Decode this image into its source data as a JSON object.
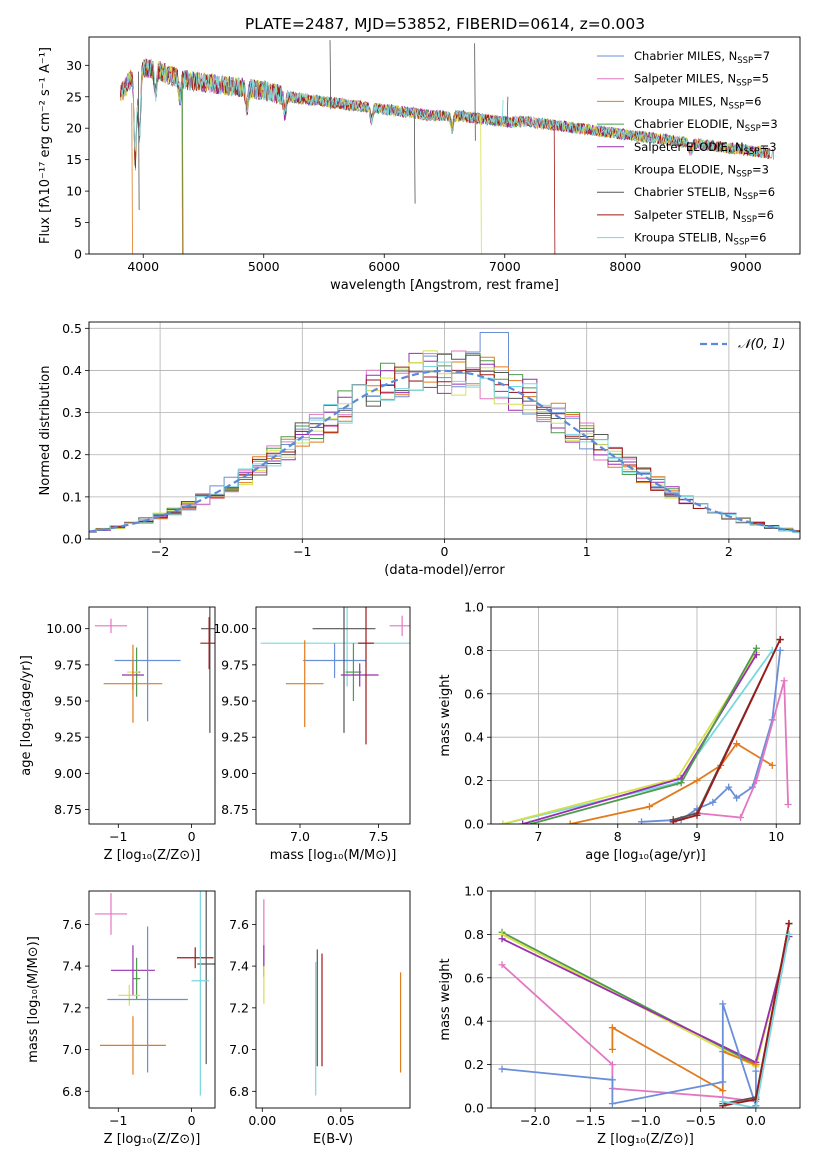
{
  "colors": {
    "blue": "#6a8fd8",
    "pink": "#e377c2",
    "orange": "#e07b1f",
    "green": "#4e9a4e",
    "purple": "#9a2fb0",
    "yellow": "#d6e04a",
    "gray": "#555555",
    "red": "#a01818",
    "cyan": "#7ad7de"
  },
  "chart_data": [
    {
      "type": "line",
      "title": "PLATE=2487, MJD=53852, FIBERID=0614, z=0.003",
      "xlabel": "wavelength [Angstrom, rest frame]",
      "ylabel": "Flux [fλ10⁻¹⁷ erg cm⁻² s⁻¹ A⁻¹]",
      "xlim": [
        3550,
        9450
      ],
      "ylim": [
        0,
        34.5
      ],
      "xticks": [
        4000,
        5000,
        6000,
        7000,
        8000,
        9000
      ],
      "yticks": [
        0,
        5,
        10,
        15,
        20,
        25,
        30
      ],
      "legend_position": "top-right",
      "series": [
        {
          "name": "Chabrier MILES, N",
          "sub": "SSP",
          "suffix": "=7",
          "color": "blue"
        },
        {
          "name": "Salpeter MILES, N",
          "sub": "SSP",
          "suffix": "=5",
          "color": "pink"
        },
        {
          "name": "Kroupa MILES, N",
          "sub": "SSP",
          "suffix": "=6",
          "color": "orange"
        },
        {
          "name": "Chabrier ELODIE, N",
          "sub": "SSP",
          "suffix": "=3",
          "color": "green"
        },
        {
          "name": "Salpeter ELODIE, N",
          "sub": "SSP",
          "suffix": "=3",
          "color": "purple"
        },
        {
          "name": "Kroupa ELODIE, N",
          "sub": "SSP",
          "suffix": "=3",
          "color": "yellow"
        },
        {
          "name": "Chabrier STELIB, N",
          "sub": "SSP",
          "suffix": "=6",
          "color": "gray"
        },
        {
          "name": "Salpeter STELIB, N",
          "sub": "SSP",
          "suffix": "=6",
          "color": "red"
        },
        {
          "name": "Kroupa STELIB, N",
          "sub": "SSP",
          "suffix": "=6",
          "color": "cyan"
        }
      ],
      "continuum": {
        "x": [
          3800,
          3900,
          4000,
          4100,
          4200,
          4400,
          4600,
          4800,
          5000,
          5200,
          5400,
          5600,
          5800,
          6000,
          6200,
          6400,
          6600,
          6800,
          7000,
          7200,
          7400,
          7600,
          7800,
          8000,
          8200,
          8400,
          8600,
          8800,
          9000,
          9200
        ],
        "y": [
          25,
          28,
          29.5,
          29.5,
          28.5,
          27.5,
          27,
          26.5,
          26,
          25,
          24.5,
          24,
          23.5,
          23,
          22.5,
          22,
          22,
          21.5,
          21,
          21,
          20.5,
          20,
          19.5,
          19,
          18.5,
          18,
          17.5,
          17,
          16.5,
          16
        ]
      }
    },
    {
      "type": "line",
      "xlabel": "(data-model)/error",
      "ylabel": "Normed distribution",
      "xlim": [
        -2.5,
        2.5
      ],
      "ylim": [
        0,
        0.515
      ],
      "xticks": [
        -2,
        -1,
        0,
        1,
        2
      ],
      "yticks": [
        0.0,
        0.1,
        0.2,
        0.3,
        0.4,
        0.5
      ],
      "grid": true,
      "legend_position": "top-right",
      "gaussian_label": "𝒩(0, 1)",
      "bin_width": 0.1
    },
    {
      "type": "scatter",
      "xlabel": "Z [log₁₀(Z/Z⊙)]",
      "ylabel": "age  [log₁₀(age/yr)]",
      "xlim": [
        -1.4,
        0.32
      ],
      "ylim": [
        8.65,
        10.15
      ],
      "xticks": [
        -1,
        0
      ],
      "yticks": [
        8.75,
        9.0,
        9.25,
        9.5,
        9.75,
        10.0
      ],
      "errorbars": [
        {
          "color": "pink",
          "x": -1.1,
          "y": 10.02,
          "xerr": 0.22,
          "yerr": 0.05
        },
        {
          "color": "blue",
          "x": -0.6,
          "y": 9.78,
          "xerr": 0.45,
          "yerr": 0.42
        },
        {
          "color": "green",
          "x": -0.75,
          "y": 9.7,
          "xerr": 0.05,
          "yerr": 0.17
        },
        {
          "color": "yellow",
          "x": -0.8,
          "y": 9.7,
          "xerr": 0.08,
          "yerr": 0.12
        },
        {
          "color": "purple",
          "x": -0.8,
          "y": 9.68,
          "xerr": 0.15,
          "yerr": 0.1
        },
        {
          "color": "orange",
          "x": -0.8,
          "y": 9.62,
          "xerr": 0.4,
          "yerr": 0.27
        },
        {
          "color": "gray",
          "x": 0.25,
          "y": 10.0,
          "xerr": 0.12,
          "yerr": 0.72
        },
        {
          "color": "red",
          "x": 0.24,
          "y": 9.9,
          "xerr": 0.12,
          "yerr": 0.18
        }
      ]
    },
    {
      "type": "scatter",
      "xlabel": "mass [log₁₀(M/M⊙)]",
      "ylabel": "",
      "xlim": [
        6.72,
        7.7
      ],
      "ylim": [
        8.65,
        10.15
      ],
      "xticks": [
        7.0,
        7.5
      ],
      "yticks": [
        8.75,
        9.0,
        9.25,
        9.5,
        9.75,
        10.0
      ],
      "errorbars": [
        {
          "color": "pink",
          "x": 7.65,
          "y": 10.02,
          "xerr": 0.08,
          "yerr": 0.07
        },
        {
          "color": "cyan",
          "x": 7.3,
          "y": 9.9,
          "xerr": 0.55,
          "yerr": 0.3
        },
        {
          "color": "blue",
          "x": 7.22,
          "y": 9.78,
          "xerr": 0.2,
          "yerr": 0.12
        },
        {
          "color": "gray",
          "x": 7.28,
          "y": 10.0,
          "xerr": 0.2,
          "yerr": 0.72
        },
        {
          "color": "green",
          "x": 7.34,
          "y": 9.7,
          "xerr": 0.05,
          "yerr": 0.2
        },
        {
          "color": "purple",
          "x": 7.38,
          "y": 9.68,
          "xerr": 0.12,
          "yerr": 0.08
        },
        {
          "color": "orange",
          "x": 7.03,
          "y": 9.62,
          "xerr": 0.12,
          "yerr": 0.3
        },
        {
          "color": "red",
          "x": 7.42,
          "y": 9.9,
          "xerr": 0.05,
          "yerr": 0.7
        }
      ]
    },
    {
      "type": "line",
      "xlabel": "age  [log₁₀(age/yr)]",
      "ylabel": "mass weight",
      "xlim": [
        6.4,
        10.3
      ],
      "ylim": [
        0,
        1.0
      ],
      "xticks": [
        7,
        8,
        9,
        10
      ],
      "yticks": [
        0.0,
        0.2,
        0.4,
        0.6,
        0.8,
        1.0
      ],
      "grid": true,
      "series": [
        {
          "color": "cyan",
          "x": [
            6.55,
            8.75,
            9.95
          ],
          "y": [
            0.0,
            0.19,
            0.8
          ]
        },
        {
          "color": "yellow",
          "x": [
            6.55,
            8.75,
            9.75
          ],
          "y": [
            0.0,
            0.21,
            0.79
          ]
        },
        {
          "color": "purple",
          "x": [
            6.8,
            8.8,
            9.75
          ],
          "y": [
            0.0,
            0.21,
            0.78
          ]
        },
        {
          "color": "green",
          "x": [
            6.9,
            8.8,
            9.75
          ],
          "y": [
            0.0,
            0.19,
            0.81
          ]
        },
        {
          "color": "orange",
          "x": [
            7.4,
            8.4,
            9.0,
            9.3,
            9.5,
            9.95
          ],
          "y": [
            0.0,
            0.08,
            0.2,
            0.27,
            0.37,
            0.27
          ]
        },
        {
          "color": "blue",
          "x": [
            8.3,
            8.8,
            9.0,
            9.2,
            9.4,
            9.5,
            9.7,
            9.95,
            10.05
          ],
          "y": [
            0.01,
            0.02,
            0.07,
            0.1,
            0.17,
            0.12,
            0.17,
            0.48,
            0.8
          ]
        },
        {
          "color": "pink",
          "x": [
            9.0,
            9.55,
            9.75,
            10.1,
            10.15
          ],
          "y": [
            0.05,
            0.03,
            0.2,
            0.66,
            0.09
          ]
        },
        {
          "color": "gray",
          "x": [
            8.7,
            9.0,
            10.05
          ],
          "y": [
            0.02,
            0.05,
            0.85
          ]
        },
        {
          "color": "red",
          "x": [
            8.7,
            9.0,
            10.05
          ],
          "y": [
            0.01,
            0.04,
            0.85
          ]
        }
      ]
    },
    {
      "type": "scatter",
      "xlabel": "Z [log₁₀(Z/Z⊙)]",
      "ylabel": "mass [log₁₀(M/M⊙)]",
      "xlim": [
        -1.4,
        0.32
      ],
      "ylim": [
        6.72,
        7.76
      ],
      "xticks": [
        -1,
        0
      ],
      "yticks": [
        6.8,
        7.0,
        7.2,
        7.4,
        7.6
      ],
      "errorbars": [
        {
          "color": "pink",
          "x": -1.1,
          "y": 7.65,
          "xerr": 0.22,
          "yerr": 0.1
        },
        {
          "color": "purple",
          "x": -0.8,
          "y": 7.38,
          "xerr": 0.3,
          "yerr": 0.12
        },
        {
          "color": "green",
          "x": -0.75,
          "y": 7.34,
          "xerr": 0.05,
          "yerr": 0.1
        },
        {
          "color": "yellow",
          "x": -0.85,
          "y": 7.26,
          "xerr": 0.15,
          "yerr": 0.05
        },
        {
          "color": "blue",
          "x": -0.6,
          "y": 7.24,
          "xerr": 0.55,
          "yerr": 0.35
        },
        {
          "color": "orange",
          "x": -0.8,
          "y": 7.02,
          "xerr": 0.45,
          "yerr": 0.14
        },
        {
          "color": "red",
          "x": 0.05,
          "y": 7.44,
          "xerr": 0.25,
          "yerr": 0.05
        },
        {
          "color": "gray",
          "x": 0.2,
          "y": 7.41,
          "xerr": 0.12,
          "yerr": 0.48
        },
        {
          "color": "cyan",
          "x": 0.12,
          "y": 7.33,
          "xerr": 0.12,
          "yerr": 0.55
        }
      ]
    },
    {
      "type": "scatter",
      "xlabel": "E(B-V)",
      "ylabel": "",
      "xlim": [
        -0.004,
        0.094
      ],
      "ylim": [
        6.72,
        7.76
      ],
      "xticks": [
        0.0,
        0.05
      ],
      "yticks": [
        6.8,
        7.0,
        7.2,
        7.4,
        7.6
      ],
      "vbars": [
        {
          "color": "pink",
          "x": 0.001,
          "y0": 7.35,
          "y1": 7.72
        },
        {
          "color": "purple",
          "x": 0.001,
          "y0": 7.35,
          "y1": 7.5
        },
        {
          "color": "yellow",
          "x": 0.001,
          "y0": 7.22,
          "y1": 7.4
        },
        {
          "color": "gray",
          "x": 0.035,
          "y0": 6.92,
          "y1": 7.48
        },
        {
          "color": "cyan",
          "x": 0.034,
          "y0": 6.78,
          "y1": 7.42
        },
        {
          "color": "red",
          "x": 0.038,
          "y0": 6.92,
          "y1": 7.46
        },
        {
          "color": "orange",
          "x": 0.088,
          "y0": 6.89,
          "y1": 7.37
        }
      ]
    },
    {
      "type": "line",
      "xlabel": "Z [log₁₀(Z/Z⊙)]",
      "ylabel": "mass weight",
      "xlim": [
        -2.4,
        0.4
      ],
      "ylim": [
        0,
        1.0
      ],
      "xticks": [
        -2.0,
        -1.5,
        -1.0,
        -0.5,
        0.0
      ],
      "yticks": [
        0.0,
        0.2,
        0.4,
        0.6,
        0.8,
        1.0
      ],
      "grid": true,
      "series": [
        {
          "color": "green",
          "x": [
            -2.3,
            0.0,
            0.3
          ],
          "y": [
            0.81,
            0.2,
            0.8
          ]
        },
        {
          "color": "yellow",
          "x": [
            -2.3,
            0.0,
            0.3
          ],
          "y": [
            0.8,
            0.19,
            0.8
          ]
        },
        {
          "color": "purple",
          "x": [
            -2.3,
            0.0,
            0.3
          ],
          "y": [
            0.78,
            0.21,
            0.79
          ]
        },
        {
          "color": "pink",
          "x": [
            -2.3,
            -1.3,
            -1.3,
            -0.3,
            0.0
          ],
          "y": [
            0.66,
            0.2,
            0.09,
            0.05,
            0.03
          ]
        },
        {
          "color": "orange",
          "x": [
            -1.3,
            -1.3,
            -0.3,
            -0.3,
            0.0
          ],
          "y": [
            0.27,
            0.37,
            0.08,
            0.26,
            0.2
          ]
        },
        {
          "color": "blue",
          "x": [
            -2.3,
            -1.3,
            -1.3,
            -0.3,
            -0.3,
            0.0,
            0.0
          ],
          "y": [
            0.18,
            0.13,
            0.02,
            0.12,
            0.48,
            0.01,
            0.17
          ]
        },
        {
          "color": "gray",
          "x": [
            -0.3,
            0.0,
            0.3
          ],
          "y": [
            0.02,
            0.05,
            0.85
          ]
        },
        {
          "color": "red",
          "x": [
            -0.3,
            0.0,
            0.3
          ],
          "y": [
            0.01,
            0.04,
            0.85
          ]
        },
        {
          "color": "cyan",
          "x": [
            -0.3,
            0.0,
            0.3
          ],
          "y": [
            0.03,
            0.0,
            0.8
          ]
        }
      ]
    }
  ]
}
